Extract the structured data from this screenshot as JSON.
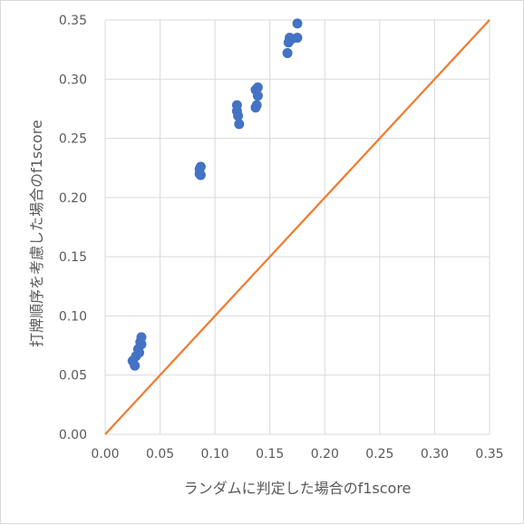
{
  "chart_data": {
    "type": "scatter",
    "xlabel": "ランダムに判定した場合のf1score",
    "ylabel": "打牌順序を考慮した場合のf1score",
    "xlim": [
      0,
      0.35
    ],
    "ylim": [
      0,
      0.35
    ],
    "xticks": [
      "0.00",
      "0.05",
      "0.10",
      "0.15",
      "0.20",
      "0.25",
      "0.30",
      "0.35"
    ],
    "yticks": [
      "0.00",
      "0.05",
      "0.10",
      "0.15",
      "0.20",
      "0.25",
      "0.30",
      "0.35"
    ],
    "grid": true,
    "series": [
      {
        "color": "#4472c4",
        "points": [
          [
            0.025,
            0.062
          ],
          [
            0.027,
            0.058
          ],
          [
            0.028,
            0.066
          ],
          [
            0.03,
            0.072
          ],
          [
            0.032,
            0.078
          ],
          [
            0.033,
            0.082
          ],
          [
            0.033,
            0.076
          ],
          [
            0.031,
            0.069
          ],
          [
            0.086,
            0.224
          ],
          [
            0.087,
            0.226
          ],
          [
            0.086,
            0.22
          ],
          [
            0.087,
            0.219
          ],
          [
            0.12,
            0.278
          ],
          [
            0.12,
            0.273
          ],
          [
            0.121,
            0.269
          ],
          [
            0.122,
            0.262
          ],
          [
            0.137,
            0.291
          ],
          [
            0.139,
            0.293
          ],
          [
            0.139,
            0.286
          ],
          [
            0.138,
            0.278
          ],
          [
            0.137,
            0.276
          ],
          [
            0.166,
            0.322
          ],
          [
            0.167,
            0.331
          ],
          [
            0.168,
            0.335
          ],
          [
            0.17,
            0.334
          ],
          [
            0.175,
            0.347
          ],
          [
            0.175,
            0.335
          ]
        ]
      }
    ],
    "reference_line": {
      "from": [
        0,
        0
      ],
      "to": [
        0.35,
        0.35
      ],
      "color": "#ed7d31"
    }
  }
}
